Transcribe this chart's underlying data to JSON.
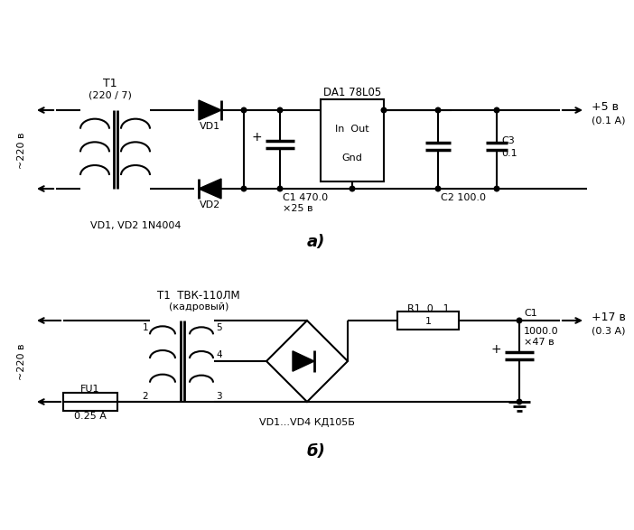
{
  "bg": "#ffffff",
  "circuit_a": {
    "T1": "T1",
    "T1_sub": "(220 / 7)",
    "input_v": "~220 в",
    "DA1_title": "DA1 78L05",
    "DA1_line1": "In  Out",
    "DA1_line2": "Gnd",
    "VD1": "VD1",
    "VD2": "VD2",
    "VD_ref": "VD1, VD2 1N4004",
    "C1": "C1 470.0",
    "C1_v": "×25 в",
    "C2": "C2 100.0",
    "C3": "C3",
    "C3_v": "0.1",
    "out_v": "+5 в",
    "out_a": "(0.1 А)"
  },
  "circuit_b": {
    "T1": "T1  ТВК-110ЛМ",
    "T1_sub": "(кадровый)",
    "input_v": "~220 в",
    "FU1": "FU1",
    "FU1_v": "0.25 А",
    "R1": "R1  0...1",
    "VD": "VD1...VD4 КД105Б",
    "C1": "C1",
    "C1_v1": "1000.0",
    "C1_v2": "×47 в",
    "out_v": "+17 в",
    "out_a": "(0.3 А)"
  },
  "label_a": "а)",
  "label_b": "б)"
}
